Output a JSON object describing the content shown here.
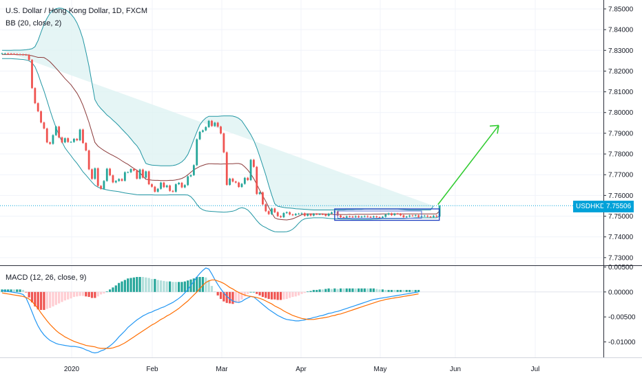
{
  "header": {
    "title": "U.S. Dollar / Hong Kong Dollar, 1D, FXCM",
    "indicator": "BB (20, close, 2)",
    "macd": "MACD (12, 26, close, 9)"
  },
  "badge": {
    "symbol": "USDHKD",
    "value": "7.75506"
  },
  "colors": {
    "up": "#26a69a",
    "down": "#ef5350",
    "bb": "#2196a3",
    "bbfill": "#dff3f3",
    "basis": "#8b3a3a",
    "macd": "#2196f3",
    "signal": "#ff6d00",
    "hist_up": "#26a69a",
    "hist_up_weak": "#b2dfdb",
    "hist_down": "#ef5350",
    "hist_down_weak": "#ffcdd2",
    "arrow": "#33cc33",
    "box": "#1a3bbf",
    "price_line": "#00a2d9"
  },
  "chart_data": [
    {
      "type": "candlestick",
      "title": "U.S. Dollar / Hong Kong Dollar, 1D, FXCM",
      "ylim": [
        7.7263,
        7.8543
      ],
      "yticks": [
        "7.85000",
        "7.84000",
        "7.83000",
        "7.82000",
        "7.81000",
        "7.80000",
        "7.79000",
        "7.78000",
        "7.77000",
        "7.76000",
        "7.75000",
        "7.74000",
        "7.73000"
      ],
      "xticks": [
        "2020",
        "Feb",
        "Mar",
        "Apr",
        "May",
        "Jun",
        "Jul"
      ],
      "close": [
        7.8285,
        7.8285,
        7.8284,
        7.8283,
        7.8282,
        7.8281,
        7.828,
        7.8279,
        7.8278,
        7.8254,
        7.8118,
        7.8045,
        7.8006,
        7.7952,
        7.7923,
        7.7856,
        7.7849,
        7.7891,
        7.7932,
        7.788,
        7.7856,
        7.7876,
        7.7858,
        7.7858,
        7.7873,
        7.7866,
        7.7918,
        7.7853,
        7.7817,
        7.7726,
        7.768,
        7.7731,
        7.7646,
        7.7632,
        7.767,
        7.7729,
        7.7697,
        7.7663,
        7.767,
        7.7679,
        7.7671,
        7.7712,
        7.7712,
        7.7727,
        7.772,
        7.7681,
        7.7725,
        7.7686,
        7.7716,
        7.7654,
        7.7642,
        7.7618,
        7.7632,
        7.7662,
        7.764,
        7.7648,
        7.7622,
        7.7618,
        7.7654,
        7.7661,
        7.7639,
        7.765,
        7.7692,
        7.7698,
        7.7746,
        7.7871,
        7.7907,
        7.7914,
        7.793,
        7.796,
        7.7935,
        7.7951,
        7.7932,
        7.7899,
        7.7808,
        7.7651,
        7.7681,
        7.7667,
        7.7662,
        7.7641,
        7.7656,
        7.7685,
        7.7674,
        7.7772,
        7.7738,
        7.7607,
        7.7615,
        7.7557,
        7.7524,
        7.751,
        7.7537,
        7.7519,
        7.75,
        7.7495,
        7.7515,
        7.7519,
        7.7508,
        7.7505,
        7.7511,
        7.7512,
        7.7514,
        7.7502,
        7.751,
        7.7503,
        7.7511,
        7.7509,
        7.751,
        7.7509,
        7.7502,
        7.7512,
        7.7518,
        7.7523,
        7.7503,
        7.7495,
        7.7493,
        7.7499,
        7.7498,
        7.7496,
        7.75,
        7.7495,
        7.7498,
        7.75,
        7.7497,
        7.7495,
        7.7499,
        7.7495,
        7.7492,
        7.7497,
        7.7508,
        7.7513,
        7.7505,
        7.7512,
        7.7511,
        7.7504,
        7.7495,
        7.7498,
        7.7503,
        7.7502,
        7.7504,
        7.7496,
        7.7501,
        7.7502,
        7.7498,
        7.7496,
        7.7502,
        7.7498,
        7.755
      ],
      "bb_upper": [
        7.83,
        7.83,
        7.83,
        7.83,
        7.8301,
        7.8301,
        7.8301,
        7.8302,
        7.8303,
        7.8305,
        7.8308,
        7.8318,
        7.8347,
        7.8387,
        7.8426,
        7.8455,
        7.8479,
        7.8493,
        7.8501,
        7.8504,
        7.8503,
        7.8497,
        7.8488,
        7.8475,
        7.8457,
        7.8433,
        7.8398,
        7.8355,
        7.8292,
        7.8225,
        7.8143,
        7.8062,
        7.8036,
        7.8019,
        7.8004,
        7.7988,
        7.7977,
        7.7963,
        7.795,
        7.7936,
        7.792,
        7.7905,
        7.789,
        7.7873,
        7.7855,
        7.784,
        7.7817,
        7.7784,
        7.7754,
        7.7749,
        7.7746,
        7.7745,
        7.7744,
        7.7743,
        7.7743,
        7.7743,
        7.7743,
        7.7744,
        7.7747,
        7.7753,
        7.7762,
        7.7776,
        7.7798,
        7.7831,
        7.787,
        7.7907,
        7.794,
        7.796,
        7.7974,
        7.7982,
        7.7982,
        7.7982,
        7.7982,
        7.7983,
        7.7984,
        7.7984,
        7.7984,
        7.7983,
        7.7979,
        7.7972,
        7.796,
        7.7939,
        7.7917,
        7.7894,
        7.7866,
        7.783,
        7.7788,
        7.7744,
        7.7699,
        7.7649,
        7.7602,
        7.756,
        7.7548,
        7.7545,
        7.7542,
        7.754,
        7.7539,
        7.7538,
        7.7536,
        7.7535,
        7.7534,
        7.7533,
        7.7532,
        7.7531,
        7.753,
        7.753,
        7.753,
        7.753,
        7.753,
        7.753,
        7.753,
        7.753,
        7.753,
        7.7531,
        7.7531,
        7.7532,
        7.7532,
        7.7532,
        7.7533,
        7.7533,
        7.7533,
        7.7534,
        7.7534,
        7.7534,
        7.7534,
        7.7534,
        7.7534,
        7.7534,
        7.7534,
        7.7534,
        7.7534,
        7.7534,
        7.7534,
        7.7533,
        7.7532,
        7.7531,
        7.753,
        7.753,
        7.753,
        7.753,
        7.753,
        7.753,
        7.753,
        7.753,
        7.755
      ],
      "bb_lower": [
        7.826,
        7.826,
        7.826,
        7.826,
        7.8259,
        7.8258,
        7.8257,
        7.8256,
        7.8254,
        7.825,
        7.824,
        7.8221,
        7.8186,
        7.8144,
        7.8104,
        7.8058,
        7.8011,
        7.7968,
        7.7928,
        7.7891,
        7.7859,
        7.783,
        7.781,
        7.7792,
        7.7772,
        7.7755,
        7.7735,
        7.7714,
        7.7698,
        7.7681,
        7.7664,
        7.7649,
        7.764,
        7.7634,
        7.763,
        7.7627,
        7.7624,
        7.7622,
        7.762,
        7.7618,
        7.7615,
        7.7612,
        7.761,
        7.7608,
        7.7606,
        7.7604,
        7.7603,
        7.7603,
        7.7603,
        7.7603,
        7.7603,
        7.7602,
        7.7602,
        7.7602,
        7.7602,
        7.7602,
        7.7603,
        7.7603,
        7.7603,
        7.7603,
        7.7603,
        7.7603,
        7.7602,
        7.7594,
        7.7578,
        7.7557,
        7.754,
        7.7531,
        7.7526,
        7.7524,
        7.7523,
        7.7522,
        7.7521,
        7.752,
        7.7519,
        7.752,
        7.7522,
        7.7524,
        7.7529,
        7.7537,
        7.7541,
        7.7538,
        7.753,
        7.7515,
        7.7497,
        7.7479,
        7.7463,
        7.7452,
        7.7445,
        7.7437,
        7.743,
        7.7425,
        7.7424,
        7.7424,
        7.7424,
        7.7425,
        7.7429,
        7.7437,
        7.745,
        7.7466,
        7.748,
        7.7487,
        7.749,
        7.7491,
        7.7492,
        7.7492,
        7.7492,
        7.7492,
        7.7491,
        7.7489,
        7.7488,
        7.7487,
        7.7487,
        7.7486,
        7.7486,
        7.7486,
        7.7486,
        7.7485,
        7.7485,
        7.7485,
        7.7485,
        7.7485,
        7.7485,
        7.7485,
        7.7486,
        7.7486,
        7.7487,
        7.7488,
        7.7488,
        7.7488,
        7.7488,
        7.7488,
        7.7488,
        7.7488,
        7.7488,
        7.7489,
        7.749,
        7.7491,
        7.7492,
        7.7492,
        7.7492,
        7.7492,
        7.7492,
        7.7492,
        7.7492,
        7.7492,
        7.75
      ],
      "bb_basis": [
        7.828,
        7.828,
        7.828,
        7.828,
        7.828,
        7.8279,
        7.8279,
        7.8279,
        7.8279,
        7.8277,
        7.8274,
        7.827,
        7.8266,
        7.8266,
        7.8265,
        7.8256,
        7.8245,
        7.823,
        7.8214,
        7.8198,
        7.8181,
        7.8164,
        7.8149,
        7.8134,
        7.8114,
        7.8094,
        7.8067,
        7.8035,
        7.7995,
        7.7953,
        7.7904,
        7.7856,
        7.7838,
        7.7827,
        7.7817,
        7.7808,
        7.78,
        7.7793,
        7.7785,
        7.7777,
        7.7767,
        7.7758,
        7.775,
        7.774,
        7.773,
        7.7722,
        7.771,
        7.7693,
        7.7678,
        7.7676,
        7.7674,
        7.7673,
        7.7673,
        7.7672,
        7.7672,
        7.7672,
        7.7673,
        7.7673,
        7.7675,
        7.7678,
        7.7682,
        7.7689,
        7.77,
        7.7712,
        7.7724,
        7.7732,
        7.774,
        7.7745,
        7.775,
        7.7753,
        7.7753,
        7.7752,
        7.7752,
        7.7751,
        7.7752,
        7.7752,
        7.7753,
        7.7753,
        7.7754,
        7.7754,
        7.775,
        7.7738,
        7.7723,
        7.7704,
        7.7681,
        7.7654,
        7.7625,
        7.7598,
        7.7572,
        7.7543,
        7.7516,
        7.7492,
        7.7486,
        7.7484,
        7.7483,
        7.7482,
        7.7484,
        7.7487,
        7.7493,
        7.75,
        7.7507,
        7.751,
        7.7511,
        7.7511,
        7.7511,
        7.7511,
        7.7511,
        7.7511,
        7.751,
        7.7509,
        7.7509,
        7.7508,
        7.7508,
        7.7508,
        7.7508,
        7.7508,
        7.7509,
        7.7508,
        7.7509,
        7.7509,
        7.7509,
        7.7509,
        7.7509,
        7.7509,
        7.751,
        7.751,
        7.751,
        7.7511,
        7.7511,
        7.7511,
        7.7511,
        7.7511,
        7.7511,
        7.7511,
        7.7511,
        7.7511,
        7.7511,
        7.7511,
        7.7511,
        7.7511,
        7.7511,
        7.7511,
        7.7511,
        7.7511,
        7.7511,
        7.7511,
        7.7525
      ],
      "last_price": 7.75506,
      "annotations": [
        "rectangle consolidation box",
        "green arrow up"
      ]
    },
    {
      "type": "macd",
      "title": "MACD (12, 26, close, 9)",
      "ylim": [
        -0.0131,
        0.0052
      ],
      "yticks": [
        "0.00500",
        "0.00000",
        "-0.00500",
        "-0.01000"
      ],
      "macd": [
        0.0003,
        0.0002,
        0.0001,
        0.0,
        -0.0001,
        -0.0002,
        -0.0003,
        -0.0005,
        -0.0012,
        -0.0025,
        -0.004,
        -0.0055,
        -0.0068,
        -0.0078,
        -0.0086,
        -0.0092,
        -0.0097,
        -0.01,
        -0.0103,
        -0.0105,
        -0.0106,
        -0.0107,
        -0.0108,
        -0.0109,
        -0.0109,
        -0.011,
        -0.0111,
        -0.0113,
        -0.0116,
        -0.0118,
        -0.0121,
        -0.0122,
        -0.0121,
        -0.0118,
        -0.0116,
        -0.0112,
        -0.0108,
        -0.0103,
        -0.0097,
        -0.009,
        -0.0084,
        -0.0078,
        -0.0071,
        -0.0066,
        -0.0061,
        -0.0056,
        -0.0052,
        -0.0048,
        -0.0045,
        -0.0042,
        -0.004,
        -0.0037,
        -0.0035,
        -0.0032,
        -0.003,
        -0.0027,
        -0.0024,
        -0.0021,
        -0.0017,
        -0.0013,
        -0.0008,
        -0.0002,
        0.0005,
        0.0013,
        0.0021,
        0.003,
        0.0037,
        0.0043,
        0.0048,
        0.0046,
        0.0036,
        0.0025,
        0.0015,
        0.0006,
        -0.0002,
        -0.0009,
        -0.0014,
        -0.0018,
        -0.002,
        -0.0021,
        -0.0019,
        -0.0015,
        -0.0012,
        -0.0009,
        -0.001,
        -0.0015,
        -0.002,
        -0.0025,
        -0.003,
        -0.0035,
        -0.0039,
        -0.0043,
        -0.0047,
        -0.005,
        -0.0053,
        -0.0055,
        -0.0056,
        -0.0057,
        -0.0058,
        -0.0058,
        -0.0057,
        -0.0056,
        -0.0054,
        -0.0053,
        -0.0051,
        -0.005,
        -0.0048,
        -0.0047,
        -0.0045,
        -0.0043,
        -0.0042,
        -0.004,
        -0.0039,
        -0.0037,
        -0.0035,
        -0.0033,
        -0.0031,
        -0.0029,
        -0.0027,
        -0.0025,
        -0.0023,
        -0.0021,
        -0.0019,
        -0.0017,
        -0.0015,
        -0.0014,
        -0.0013,
        -0.0012,
        -0.0011,
        -0.001,
        -0.0009,
        -0.0008,
        -0.0007,
        -0.0006,
        -0.0005,
        -0.0004,
        -0.0003,
        -0.0002,
        -0.0001,
        0.0
      ],
      "signal": [
        -0.0002,
        -0.0003,
        -0.0004,
        -0.0005,
        -0.0006,
        -0.0007,
        -0.0008,
        -0.0009,
        -0.0011,
        -0.0014,
        -0.0019,
        -0.0026,
        -0.0033,
        -0.0042,
        -0.005,
        -0.0058,
        -0.0065,
        -0.0071,
        -0.0077,
        -0.0082,
        -0.0086,
        -0.009,
        -0.0093,
        -0.0096,
        -0.0099,
        -0.0101,
        -0.0103,
        -0.0105,
        -0.0107,
        -0.0108,
        -0.0109,
        -0.011,
        -0.0112,
        -0.0113,
        -0.0113,
        -0.0113,
        -0.0113,
        -0.0112,
        -0.011,
        -0.0108,
        -0.0105,
        -0.0102,
        -0.0098,
        -0.0094,
        -0.009,
        -0.0086,
        -0.0082,
        -0.0078,
        -0.0074,
        -0.007,
        -0.0066,
        -0.0063,
        -0.0059,
        -0.0055,
        -0.0052,
        -0.0048,
        -0.0045,
        -0.0041,
        -0.0037,
        -0.0033,
        -0.0028,
        -0.0023,
        -0.0018,
        -0.0012,
        -0.0006,
        0.0,
        0.0007,
        0.0013,
        0.0019,
        0.0022,
        0.0024,
        0.0024,
        0.0022,
        0.002,
        0.0017,
        0.0013,
        0.0009,
        0.0006,
        0.0002,
        -0.0001,
        -0.0004,
        -0.0006,
        -0.0008,
        -0.0009,
        -0.001,
        -0.0011,
        -0.0013,
        -0.0015,
        -0.0018,
        -0.0021,
        -0.0024,
        -0.0028,
        -0.0031,
        -0.0034,
        -0.0038,
        -0.0041,
        -0.0044,
        -0.0047,
        -0.0049,
        -0.0051,
        -0.0053,
        -0.0054,
        -0.0055,
        -0.0055,
        -0.0055,
        -0.0054,
        -0.0053,
        -0.0052,
        -0.0051,
        -0.005,
        -0.0048,
        -0.0047,
        -0.0045,
        -0.0044,
        -0.0042,
        -0.004,
        -0.0038,
        -0.0036,
        -0.0034,
        -0.0032,
        -0.003,
        -0.0028,
        -0.0026,
        -0.0024,
        -0.0022,
        -0.002,
        -0.0018,
        -0.0017,
        -0.0015,
        -0.0014,
        -0.0013,
        -0.0012,
        -0.0011,
        -0.001,
        -0.0009,
        -0.0008,
        -0.0007,
        -0.0006,
        -0.0005,
        -0.0004
      ]
    }
  ]
}
